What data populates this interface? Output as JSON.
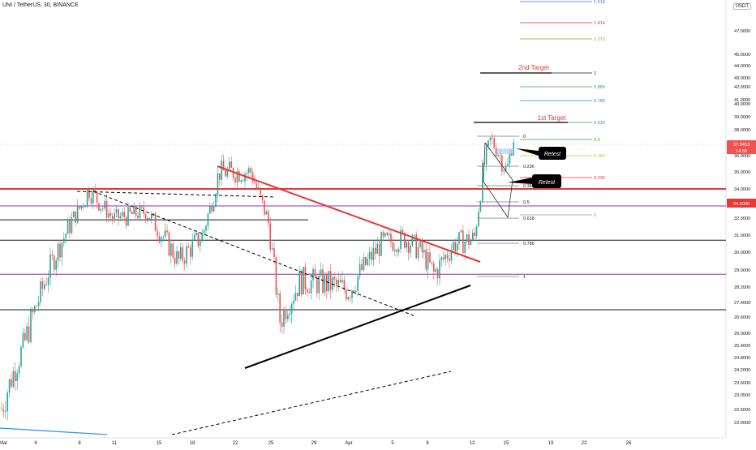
{
  "header": {
    "symbol_line": "UNI / TetherUS, 30, BINANCE",
    "currency": "USDT"
  },
  "chart_data": {
    "type": "candlestick",
    "price_axis": {
      "ticks": [
        "47.0000",
        "45.0000",
        "44.0000",
        "43.0000",
        "42.0000",
        "41.0000",
        "40.0000",
        "39.0000",
        "38.0000",
        "37.0000",
        "36.0000",
        "35.0000",
        "34.0000",
        "33.0000",
        "32.0000",
        "31.0000",
        "30.0000",
        "29.0000",
        "28.2000",
        "27.4000",
        "26.6000",
        "26.0000",
        "25.4000",
        "24.8000",
        "24.2000",
        "23.6000",
        "23.0500",
        "22.5000",
        "22.0000"
      ],
      "current_price": "37.9453",
      "current_countdown": "14:58",
      "level_label": "34.0000"
    },
    "time_axis": {
      "ticks": [
        "Mar",
        "4",
        "8",
        "11",
        "15",
        "18",
        "22",
        "25",
        "29",
        "Apr",
        "5",
        "8",
        "12",
        "15",
        "19",
        "22",
        "26"
      ]
    },
    "annotations": {
      "targets": [
        "2nd Target",
        "1st Target"
      ],
      "retests": [
        "Retest",
        "Retest"
      ]
    },
    "fib_extension": [
      "1.618",
      "1.414",
      "1.272",
      "1",
      "0.886",
      "0.786",
      "0.618",
      "0.5",
      "0.382",
      "0.236",
      "0"
    ],
    "fib_retracement_upper": [
      "0",
      "0.236",
      "0.382",
      "0.5",
      "0.618"
    ],
    "fib_retracement_lower": [
      "0.786",
      "1"
    ],
    "colors": {
      "up_candle": "#26a69a",
      "down_candle": "#ef5350",
      "resistance_red": "#e53935",
      "purple_level": "#9c27b0",
      "price_tag": "#ef5350"
    }
  }
}
